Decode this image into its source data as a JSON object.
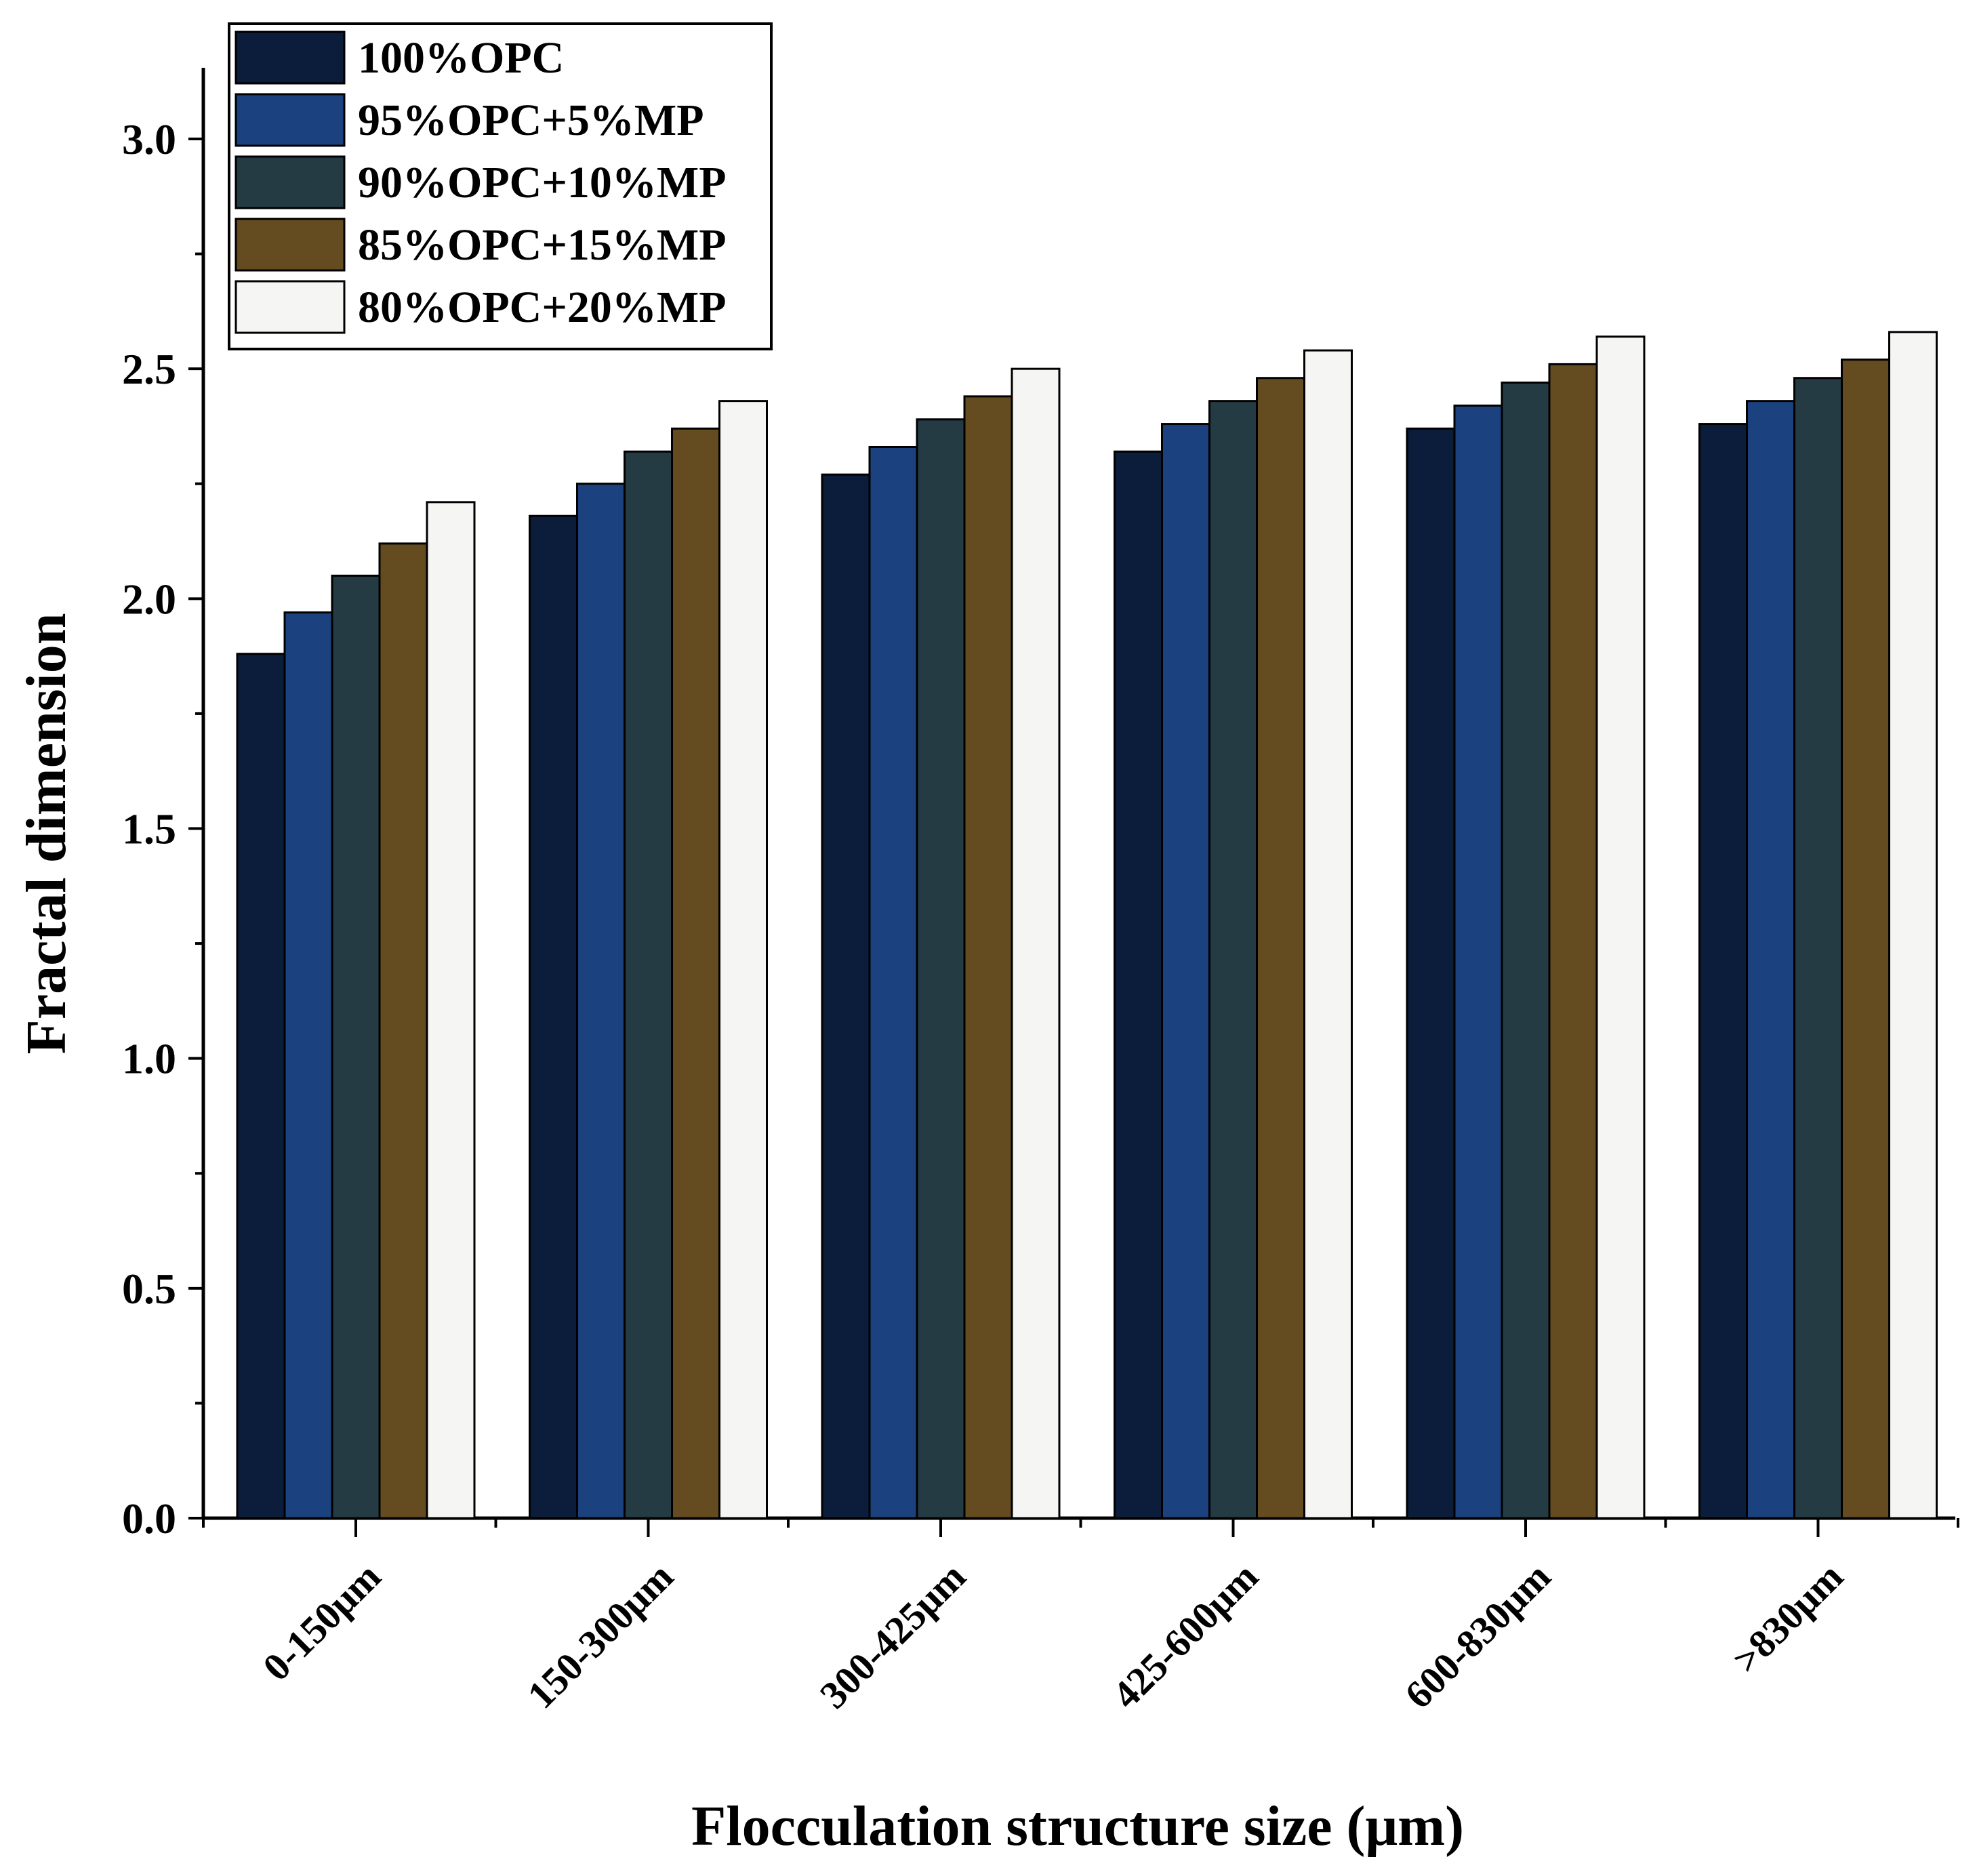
{
  "chart_data": {
    "type": "bar",
    "title": "",
    "xlabel": "Flocculation structure size (μm)",
    "ylabel": "Fractal dimension",
    "ylim": [
      0.0,
      3.0
    ],
    "yticks": [
      "0.0",
      "0.5",
      "1.0",
      "1.5",
      "2.0",
      "2.5",
      "3.0"
    ],
    "grid": false,
    "legend_position": "top-left",
    "categories": [
      "0-150μm",
      "150-300μm",
      "300-425μm",
      "425-600μm",
      "600-830μm",
      ">830μm"
    ],
    "series": [
      {
        "name": "100%OPC",
        "color": "#0b1d3a",
        "values": [
          1.88,
          2.18,
          2.27,
          2.32,
          2.37,
          2.38
        ]
      },
      {
        "name": "95%OPC+5%MP",
        "color": "#1b427e",
        "values": [
          1.97,
          2.25,
          2.33,
          2.38,
          2.42,
          2.43
        ]
      },
      {
        "name": "90%OPC+10%MP",
        "color": "#243b43",
        "values": [
          2.05,
          2.32,
          2.39,
          2.43,
          2.47,
          2.48
        ]
      },
      {
        "name": "85%OPC+15%MP",
        "color": "#654b20",
        "values": [
          2.12,
          2.37,
          2.44,
          2.48,
          2.51,
          2.52
        ]
      },
      {
        "name": "80%OPC+20%MP",
        "color": "#f5f6f4",
        "values": [
          2.21,
          2.43,
          2.5,
          2.54,
          2.57,
          2.58
        ]
      }
    ]
  }
}
